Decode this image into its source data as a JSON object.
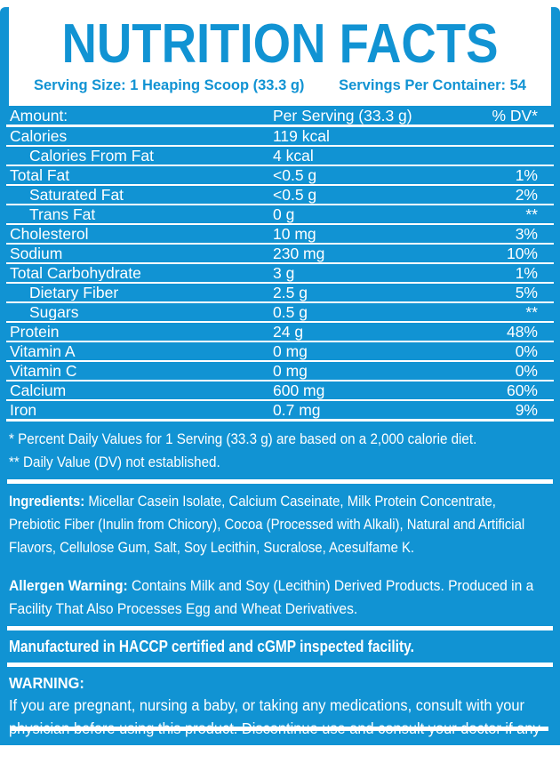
{
  "colors": {
    "accent_blue": "#1193D3",
    "text_white": "#FFFFFF"
  },
  "header": {
    "title": "NUTRITION FACTS",
    "serving_size": "Serving Size: 1 Heaping Scoop (33.3 g)",
    "servings_per_container": "Servings Per Container: 54"
  },
  "table": {
    "columns": {
      "amount": "Amount:",
      "per_serving": "Per Serving (33.3 g)",
      "dv": "% DV*"
    },
    "rows": [
      {
        "name": "Calories",
        "value": "119 kcal",
        "dv": "",
        "indent": false
      },
      {
        "name": "Calories From Fat",
        "value": "4 kcal",
        "dv": "",
        "indent": true
      },
      {
        "name": "Total Fat",
        "value": "<0.5 g",
        "dv": "1%",
        "indent": false
      },
      {
        "name": "Saturated Fat",
        "value": "<0.5 g",
        "dv": "2%",
        "indent": true
      },
      {
        "name": "Trans Fat",
        "value": "0 g",
        "dv": "**",
        "indent": true
      },
      {
        "name": "Cholesterol",
        "value": "10 mg",
        "dv": "3%",
        "indent": false
      },
      {
        "name": "Sodium",
        "value": "230 mg",
        "dv": "10%",
        "indent": false
      },
      {
        "name": "Total Carbohydrate",
        "value": "3 g",
        "dv": "1%",
        "indent": false
      },
      {
        "name": "Dietary Fiber",
        "value": "2.5 g",
        "dv": "5%",
        "indent": true
      },
      {
        "name": "Sugars",
        "value": "0.5 g",
        "dv": "**",
        "indent": true
      },
      {
        "name": "Protein",
        "value": "24 g",
        "dv": "48%",
        "indent": false
      },
      {
        "name": "Vitamin A",
        "value": "0 mg",
        "dv": "0%",
        "indent": false
      },
      {
        "name": "Vitamin C",
        "value": "0 mg",
        "dv": "0%",
        "indent": false
      },
      {
        "name": "Calcium",
        "value": "600 mg",
        "dv": "60%",
        "indent": false
      },
      {
        "name": "Iron",
        "value": "0.7 mg",
        "dv": "9%",
        "indent": false
      }
    ]
  },
  "footnotes": {
    "line1": "* Percent Daily Values for 1 Serving (33.3 g) are based on a 2,000 calorie diet.",
    "line2": "** Daily Value (DV) not established."
  },
  "ingredients": {
    "label": "Ingredients:",
    "text": " Micellar Casein Isolate, Calcium Caseinate, Milk Protein Concentrate, Prebiotic Fiber (Inulin from Chicory), Cocoa (Processed with Alkali), Natural and Artificial Flavors, Cellulose Gum, Salt, Soy Lecithin, Sucralose, Acesulfame K."
  },
  "allergen": {
    "label": "Allergen Warning:",
    "text": " Contains Milk and Soy (Lecithin) Derived Products. Produced in a Facility That Also Processes Egg and Wheat Derivatives."
  },
  "manufactured": "Manufactured in HACCP certified and cGMP inspected facility.",
  "warning": {
    "label": "WARNING:",
    "text": "If you are pregnant, nursing a baby, or taking any medications, consult with your physician before using this product. Discontinue use and consult your doctor if any adverse reactions occur."
  }
}
